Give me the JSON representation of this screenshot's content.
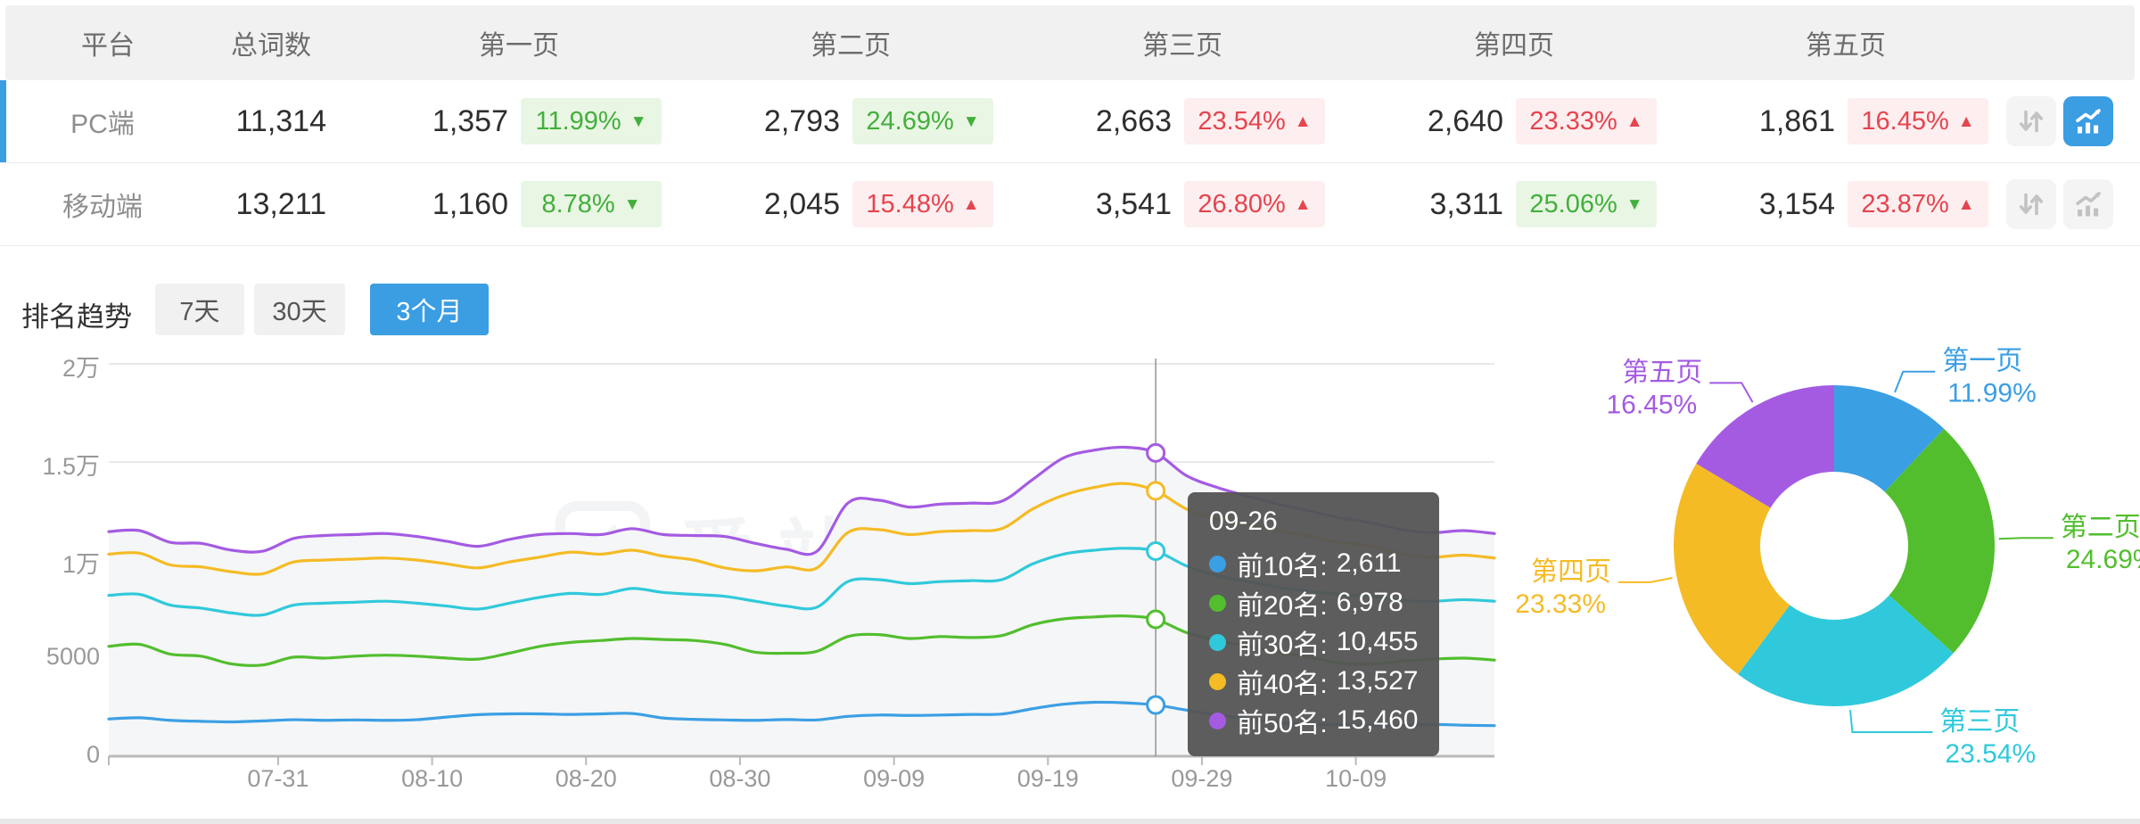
{
  "table": {
    "headers": [
      "平台",
      "总词数",
      "第一页",
      "第二页",
      "第三页",
      "第四页",
      "第五页"
    ],
    "rows": [
      {
        "platform": "PC端",
        "total": "11,314",
        "selected": true,
        "pages": [
          {
            "count": "1,357",
            "pct": "11.99%",
            "arrow": "▼",
            "tone": "green"
          },
          {
            "count": "2,793",
            "pct": "24.69%",
            "arrow": "▼",
            "tone": "green"
          },
          {
            "count": "2,663",
            "pct": "23.54%",
            "arrow": "▲",
            "tone": "red"
          },
          {
            "count": "2,640",
            "pct": "23.33%",
            "arrow": "▲",
            "tone": "red"
          },
          {
            "count": "1,861",
            "pct": "16.45%",
            "arrow": "▲",
            "tone": "red"
          }
        ],
        "sort_active": false,
        "chart_active": true
      },
      {
        "platform": "移动端",
        "total": "13,211",
        "selected": false,
        "pages": [
          {
            "count": "1,160",
            "pct": "8.78%",
            "arrow": "▼",
            "tone": "green"
          },
          {
            "count": "2,045",
            "pct": "15.48%",
            "arrow": "▲",
            "tone": "red"
          },
          {
            "count": "3,541",
            "pct": "26.80%",
            "arrow": "▲",
            "tone": "red"
          },
          {
            "count": "3,311",
            "pct": "25.06%",
            "arrow": "▼",
            "tone": "green"
          },
          {
            "count": "3,154",
            "pct": "23.87%",
            "arrow": "▲",
            "tone": "red"
          }
        ],
        "sort_active": false,
        "chart_active": false
      }
    ]
  },
  "trend": {
    "title": "排名趋势",
    "tabs": [
      {
        "label": "7天",
        "active": false
      },
      {
        "label": "30天",
        "active": false
      },
      {
        "label": "3个月",
        "active": true
      }
    ],
    "watermark": "爱站网",
    "tooltip": {
      "title": "09-26",
      "rows": [
        {
          "label": "前10名:",
          "value": "2,611"
        },
        {
          "label": "前20名:",
          "value": "6,978"
        },
        {
          "label": "前30名:",
          "value": "10,455"
        },
        {
          "label": "前40名:",
          "value": "13,527"
        },
        {
          "label": "前50名:",
          "value": "15,460"
        }
      ]
    }
  },
  "chart_data": [
    {
      "type": "line",
      "title": "排名趋势 3个月",
      "ylim": [
        0,
        20000
      ],
      "grid": true,
      "x_start_date": "07-20",
      "x_day_span": 90,
      "x_ticks": [
        {
          "label": "07-31",
          "day": 11
        },
        {
          "label": "08-10",
          "day": 21
        },
        {
          "label": "08-20",
          "day": 31
        },
        {
          "label": "08-30",
          "day": 41
        },
        {
          "label": "09-09",
          "day": 51
        },
        {
          "label": "09-19",
          "day": 61
        },
        {
          "label": "09-29",
          "day": 71
        },
        {
          "label": "10-09",
          "day": 81
        }
      ],
      "y_ticks": [
        {
          "label": "0",
          "value": 0
        },
        {
          "label": "5000",
          "value": 5000
        },
        {
          "label": "1万",
          "value": 10000
        },
        {
          "label": "1.5万",
          "value": 15000
        },
        {
          "label": "2万",
          "value": 20000
        }
      ],
      "hover": {
        "date": "09-26",
        "day": 68,
        "index": 34
      },
      "day_step": 2,
      "series": [
        {
          "name": "前10名",
          "color": "#3B9FE4",
          "values": [
            1900,
            1960,
            1830,
            1780,
            1750,
            1800,
            1860,
            1830,
            1850,
            1830,
            1860,
            2000,
            2120,
            2160,
            2160,
            2130,
            2160,
            2180,
            1950,
            1880,
            1850,
            1830,
            1870,
            1850,
            2030,
            2100,
            2080,
            2100,
            2130,
            2150,
            2420,
            2650,
            2750,
            2720,
            2611,
            2350,
            2100,
            1900,
            1700,
            1620,
            1600,
            1570,
            1560,
            1620,
            1580,
            1560
          ]
        },
        {
          "name": "前20名",
          "color": "#52BE2E",
          "values": [
            5600,
            5700,
            5200,
            5100,
            4700,
            4650,
            5050,
            5000,
            5100,
            5150,
            5100,
            5000,
            4950,
            5250,
            5600,
            5800,
            5900,
            6000,
            5950,
            5900,
            5700,
            5300,
            5250,
            5350,
            6100,
            6200,
            6000,
            6100,
            6050,
            6150,
            6700,
            7000,
            7100,
            7150,
            6978,
            6300,
            5900,
            5600,
            5300,
            5050,
            4750,
            4700,
            4850,
            4950,
            5000,
            4900
          ]
        },
        {
          "name": "前30名",
          "color": "#30C9DB",
          "values": [
            8200,
            8250,
            7700,
            7550,
            7300,
            7200,
            7700,
            7800,
            7850,
            7900,
            7800,
            7650,
            7500,
            7800,
            8100,
            8300,
            8250,
            8550,
            8350,
            8250,
            8150,
            7900,
            7650,
            7600,
            8900,
            9000,
            8800,
            8900,
            8950,
            9000,
            9800,
            10300,
            10500,
            10600,
            10455,
            9700,
            9200,
            8900,
            8600,
            8400,
            8250,
            8150,
            7950,
            7900,
            7980,
            7900
          ]
        },
        {
          "name": "前40名",
          "color": "#F5BB25",
          "values": [
            10300,
            10350,
            9750,
            9650,
            9400,
            9300,
            9900,
            10000,
            10050,
            10100,
            10000,
            9800,
            9600,
            9900,
            10150,
            10400,
            10300,
            10500,
            10200,
            10000,
            9600,
            9450,
            9650,
            9600,
            11400,
            11550,
            11300,
            11450,
            11500,
            11600,
            12600,
            13300,
            13700,
            13900,
            13527,
            12600,
            12100,
            11800,
            11500,
            11200,
            10900,
            10700,
            10300,
            10150,
            10250,
            10100
          ]
        },
        {
          "name": "前50名",
          "color": "#A45BE2",
          "values": [
            11450,
            11500,
            10900,
            10850,
            10500,
            10450,
            11100,
            11250,
            11300,
            11350,
            11200,
            10950,
            10700,
            11050,
            11300,
            11350,
            11300,
            11600,
            11300,
            11250,
            11200,
            10850,
            10550,
            10450,
            12900,
            13050,
            12700,
            12850,
            12900,
            13000,
            14100,
            15200,
            15600,
            15750,
            15460,
            14300,
            13700,
            13250,
            12850,
            12500,
            12150,
            11900,
            11550,
            11400,
            11500,
            11350
          ]
        }
      ]
    },
    {
      "type": "pie",
      "donut": true,
      "segments": [
        {
          "label": "第一页",
          "value": 11.99,
          "color": "#3B9FE4"
        },
        {
          "label": "第二页",
          "value": 24.69,
          "color": "#52BE2E"
        },
        {
          "label": "第三页",
          "value": 23.54,
          "color": "#30C9DB"
        },
        {
          "label": "第四页",
          "value": 23.33,
          "color": "#F5BB25"
        },
        {
          "label": "第五页",
          "value": 16.45,
          "color": "#A45BE2"
        }
      ]
    }
  ]
}
